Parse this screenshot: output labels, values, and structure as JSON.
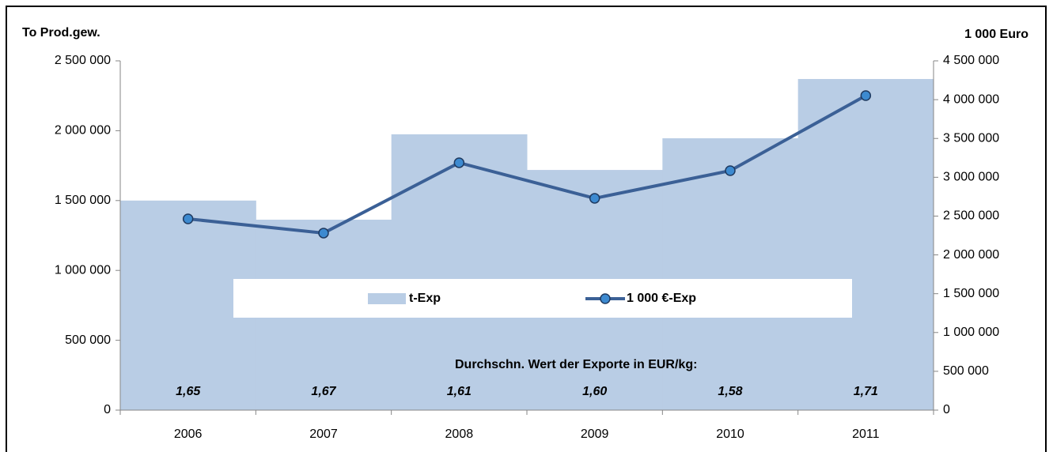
{
  "chart_data": {
    "type": "combo",
    "y_label": "To Prod.gew.",
    "y2_label": "1 000 Euro",
    "categories": [
      "2006",
      "2007",
      "2008",
      "2009",
      "2010",
      "2011"
    ],
    "series": [
      {
        "name": "t-Exp",
        "type": "bar",
        "color": "#b9cde5",
        "values": [
          1500000,
          1363000,
          1974000,
          1719000,
          1946000,
          2370000
        ]
      },
      {
        "name": "1 000 €-Exp",
        "type": "line",
        "color": "#3b6096",
        "marker_color": "#3d8ad0",
        "axis": "y2",
        "values": [
          2464000,
          2281000,
          3187000,
          2729000,
          3085000,
          4052000
        ]
      }
    ],
    "ylim": [
      0,
      2500000
    ],
    "yticks": [
      {
        "value": 0,
        "label": "0"
      },
      {
        "value": 500000,
        "label": "500 000"
      },
      {
        "value": 1000000,
        "label": "1 000 000"
      },
      {
        "value": 1500000,
        "label": "1 500 000"
      },
      {
        "value": 2000000,
        "label": "2 000 000"
      },
      {
        "value": 2500000,
        "label": "2 500 000"
      }
    ],
    "y2lim": [
      0,
      4500000
    ],
    "y2ticks": [
      {
        "value": 0,
        "label": "0"
      },
      {
        "value": 500000,
        "label": "500 000"
      },
      {
        "value": 1000000,
        "label": "1 000 000"
      },
      {
        "value": 1500000,
        "label": "1 500 000"
      },
      {
        "value": 2000000,
        "label": "2 000 000"
      },
      {
        "value": 2500000,
        "label": "2 500 000"
      },
      {
        "value": 3000000,
        "label": "3 000 000"
      },
      {
        "value": 3500000,
        "label": "3 500 000"
      },
      {
        "value": 4000000,
        "label": "4 000 000"
      },
      {
        "value": 4500000,
        "label": "4 500 000"
      }
    ],
    "annotation": "Durchschn. Wert  der Exporte in EUR/kg:",
    "avg_labels": [
      "1,65",
      "1,67",
      "1,61",
      "1,60",
      "1,58",
      "1,71"
    ]
  }
}
